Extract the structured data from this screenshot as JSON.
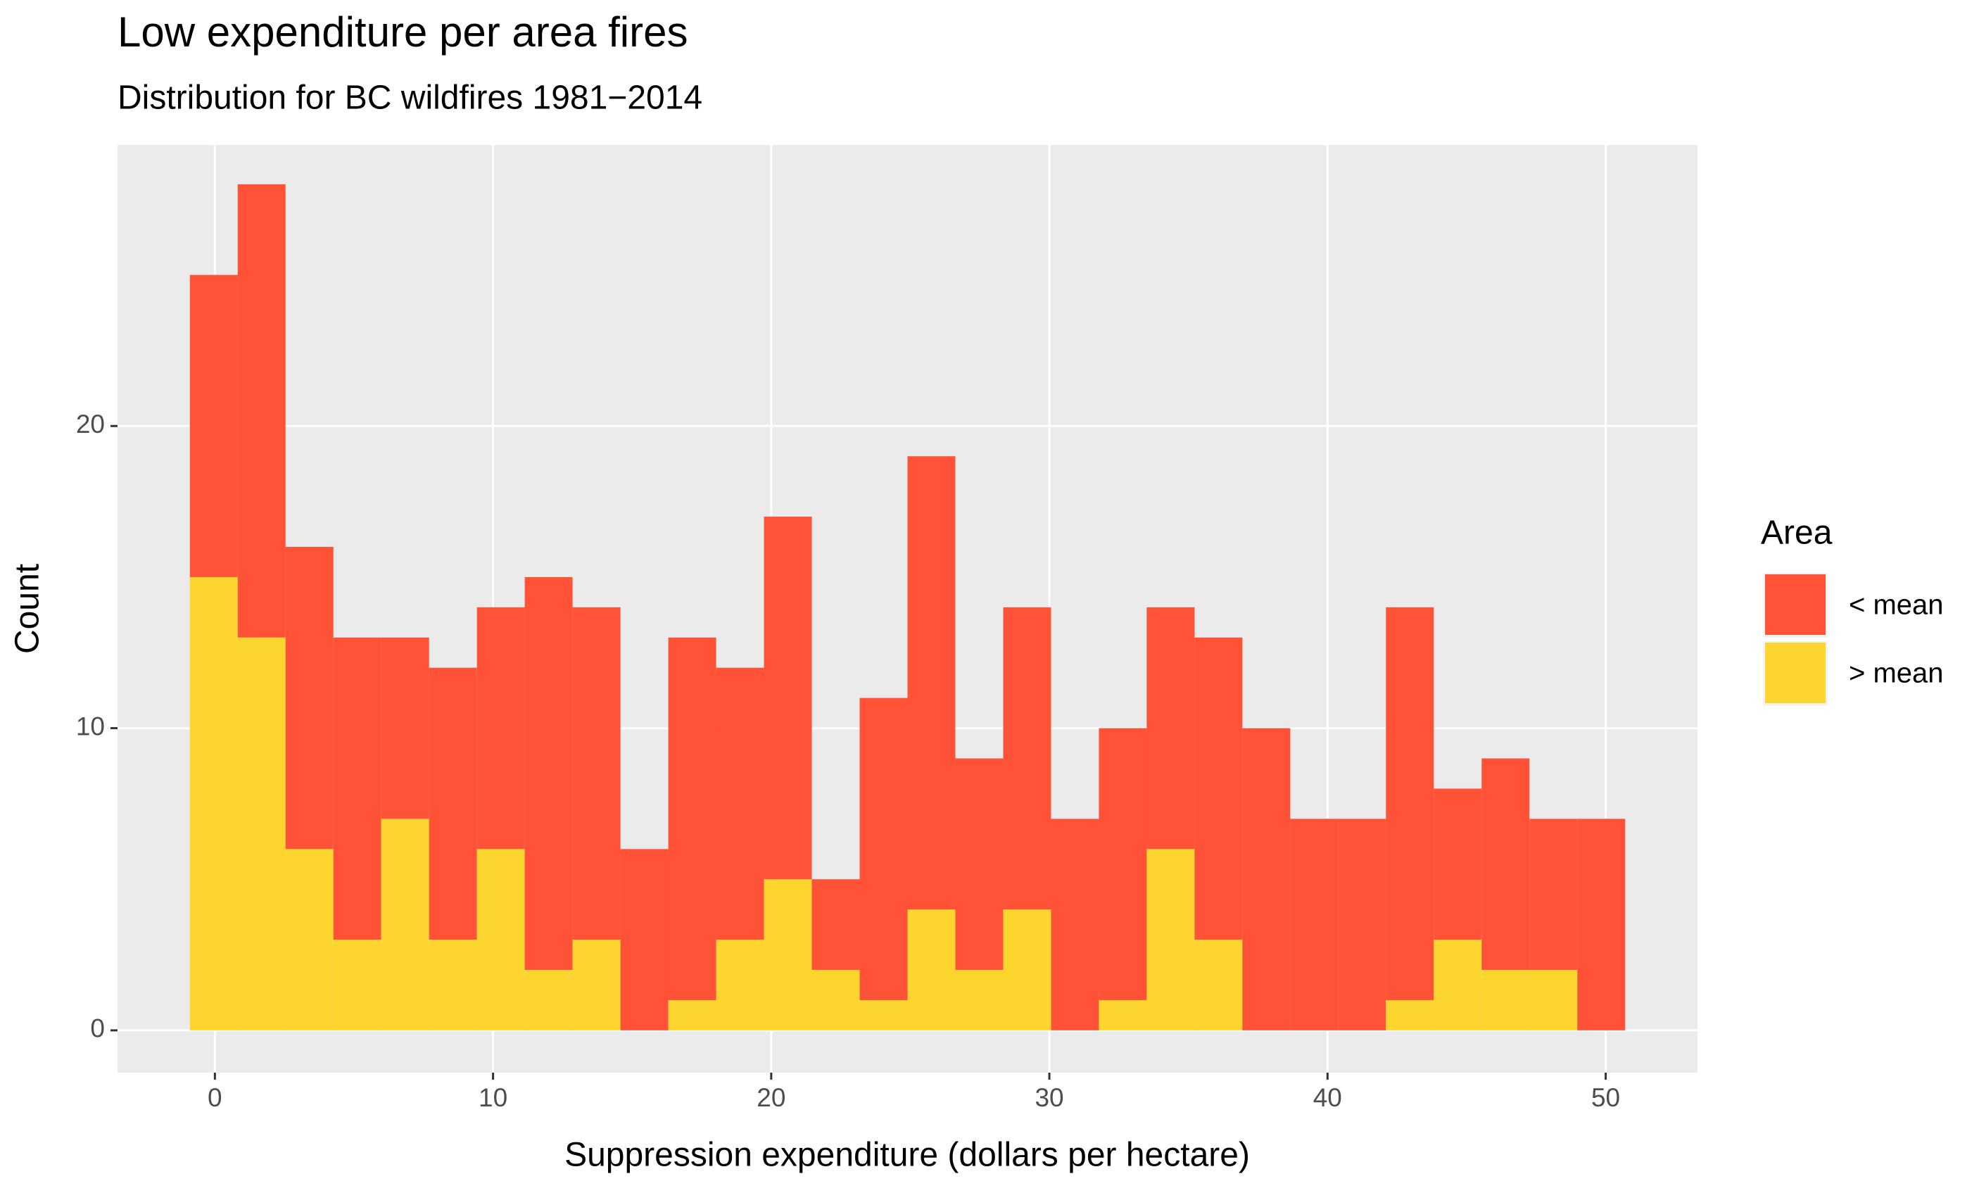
{
  "chart_data": {
    "type": "histogram",
    "title": "Low expenditure per area fires",
    "subtitle": "Distribution for BC wildfires 1981−2014",
    "x_label": "Suppression expenditure (dollars per hectare)",
    "y_label": "Count",
    "legend_title": "Area",
    "bins": [
      -0.9,
      0.82,
      2.54,
      4.26,
      5.98,
      7.7,
      9.42,
      11.14,
      12.86,
      14.58,
      16.3,
      18.02,
      19.74,
      21.46,
      23.18,
      24.9,
      26.62,
      28.34,
      30.06,
      31.78,
      33.5,
      35.22,
      36.94,
      38.66,
      40.38,
      42.1,
      43.82,
      45.54,
      47.26,
      48.98,
      50.7
    ],
    "series": [
      {
        "name": "< mean",
        "color": "#ff5236",
        "values": [
          10,
          15,
          10,
          10,
          6,
          9,
          8,
          13,
          11,
          6,
          12,
          9,
          12,
          3,
          10,
          15,
          7,
          10,
          7,
          9,
          8,
          10,
          10,
          7,
          7,
          13,
          5,
          7,
          5,
          7
        ]
      },
      {
        "name": "> mean",
        "color": "#fdd52f",
        "values": [
          15,
          13,
          6,
          3,
          7,
          3,
          6,
          2,
          3,
          0,
          1,
          3,
          5,
          2,
          1,
          4,
          2,
          4,
          0,
          1,
          6,
          3,
          0,
          0,
          0,
          1,
          3,
          2,
          2,
          0
        ]
      }
    ],
    "stacked": true,
    "xlim": [
      -3.5,
      53.3
    ],
    "ylim": [
      -1.4,
      29.3
    ],
    "xticks": [
      0,
      10,
      20,
      30,
      40,
      50
    ],
    "yticks": [
      0,
      10,
      20
    ],
    "grid": true,
    "legend": "right"
  }
}
